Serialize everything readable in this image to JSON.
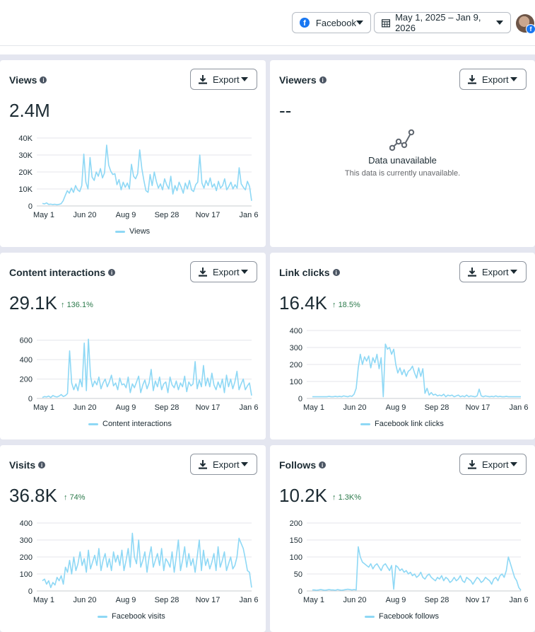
{
  "header": {
    "platform_label": "Facebook",
    "date_range": "May 1, 2025 – Jan 9, 2026",
    "avatar_badge": "f",
    "platform_icon": "f"
  },
  "common": {
    "export_label": "Export",
    "info_glyph": "i",
    "x_ticks": [
      "May 1",
      "Jun 20",
      "Aug 9",
      "Sep 28",
      "Nov 17",
      "Jan 6"
    ],
    "line_color": "#8ed8f5"
  },
  "cards": {
    "views": {
      "title": "Views",
      "value": "2.4M",
      "legend": "Views"
    },
    "viewers": {
      "title": "Viewers",
      "value": "--",
      "unavailable_title": "Data unavailable",
      "unavailable_text": "This data is currently unavailable."
    },
    "content_interactions": {
      "title": "Content interactions",
      "value": "29.1K",
      "delta": "136.1%",
      "legend": "Content interactions"
    },
    "link_clicks": {
      "title": "Link clicks",
      "value": "16.4K",
      "delta": "18.5%",
      "legend": "Facebook link clicks"
    },
    "visits": {
      "title": "Visits",
      "value": "36.8K",
      "delta": "74%",
      "legend": "Facebook visits"
    },
    "follows": {
      "title": "Follows",
      "value": "10.2K",
      "delta": "1.3K%",
      "legend": "Facebook follows"
    }
  },
  "chart_data": [
    {
      "type": "line",
      "id": "views",
      "title": "Views",
      "series_name": "Views",
      "y_tick_labels": [
        "0",
        "10K",
        "20K",
        "30K",
        "40K"
      ],
      "ylim": [
        0,
        40000
      ],
      "x_tick_labels": [
        "May 1",
        "Jun 20",
        "Aug 9",
        "Sep 28",
        "Nov 17",
        "Jan 6"
      ],
      "values": [
        1500,
        1200,
        1800,
        900,
        1100,
        800,
        1000,
        700,
        900,
        1300,
        3000,
        6000,
        9000,
        7500,
        10500,
        8000,
        12000,
        9500,
        8500,
        12000,
        30500,
        14000,
        10000,
        28500,
        17000,
        15000,
        20000,
        17500,
        22000,
        16500,
        19500,
        35800,
        24000,
        20500,
        18500,
        19000,
        12500,
        15500,
        9500,
        14000,
        11000,
        13500,
        10000,
        24500,
        17500,
        16000,
        19000,
        33000,
        22000,
        15000,
        9000,
        8000,
        18500,
        12000,
        20000,
        14500,
        10500,
        13000,
        9500,
        16000,
        12500,
        10000,
        17500,
        7000,
        12000,
        9000,
        14000,
        11000,
        7500,
        13500,
        10000,
        15000,
        9500,
        8500,
        12500,
        14000,
        30000,
        13500,
        10500,
        15000,
        12000,
        16500,
        11000,
        13000,
        9000,
        14500,
        10500,
        12000,
        16000,
        9500,
        11500,
        14000,
        10000,
        12500,
        10500,
        22500,
        13000,
        11000,
        9500,
        14500,
        11500,
        3000
      ]
    },
    {
      "type": "line",
      "id": "content_interactions",
      "title": "Content interactions",
      "series_name": "Content interactions",
      "y_tick_labels": [
        "0",
        "200",
        "400",
        "600"
      ],
      "ylim": [
        0,
        700
      ],
      "x_tick_labels": [
        "May 1",
        "Jun 20",
        "Aug 9",
        "Sep 28",
        "Nov 17",
        "Jan 6"
      ],
      "values": [
        10,
        20,
        15,
        25,
        10,
        30,
        20,
        15,
        25,
        40,
        20,
        30,
        50,
        490,
        160,
        90,
        150,
        80,
        200,
        120,
        570,
        80,
        610,
        230,
        120,
        180,
        140,
        220,
        100,
        160,
        200,
        120,
        170,
        240,
        130,
        160,
        90,
        210,
        140,
        150,
        110,
        220,
        60,
        150,
        110,
        170,
        230,
        60,
        140,
        190,
        100,
        160,
        300,
        80,
        180,
        120,
        220,
        90,
        150,
        170,
        60,
        220,
        140,
        110,
        180,
        90,
        160,
        120,
        230,
        70,
        170,
        130,
        150,
        380,
        100,
        190,
        120,
        340,
        130,
        210,
        120,
        260,
        140,
        90,
        170,
        110,
        200,
        60,
        240,
        120,
        200,
        100,
        170,
        280,
        90,
        150,
        200,
        90,
        130,
        160,
        30
      ]
    },
    {
      "type": "line",
      "id": "link_clicks",
      "title": "Link clicks",
      "series_name": "Facebook link clicks",
      "y_tick_labels": [
        "0",
        "100",
        "200",
        "300",
        "400"
      ],
      "ylim": [
        0,
        400
      ],
      "x_tick_labels": [
        "May 1",
        "Jun 20",
        "Aug 9",
        "Sep 28",
        "Nov 17",
        "Jan 6"
      ],
      "values": [
        10,
        10,
        10,
        10,
        10,
        10,
        10,
        10,
        12,
        10,
        10,
        12,
        10,
        12,
        10,
        15,
        12,
        10,
        15,
        12,
        25,
        60,
        180,
        260,
        200,
        245,
        220,
        250,
        180,
        240,
        210,
        260,
        175,
        240,
        10,
        320,
        290,
        300,
        260,
        290,
        200,
        150,
        180,
        140,
        170,
        130,
        160,
        170,
        190,
        150,
        120,
        180,
        130,
        175,
        30,
        60,
        20,
        35,
        20,
        25,
        15,
        20,
        15,
        25,
        10,
        20,
        15,
        20,
        10,
        15,
        20,
        10,
        15,
        10,
        20,
        10,
        15,
        12,
        10,
        15,
        55,
        15,
        10,
        15,
        12,
        10,
        12,
        10,
        15,
        10,
        12,
        10,
        10,
        12,
        10,
        10,
        10,
        10,
        10,
        10,
        10
      ]
    },
    {
      "type": "line",
      "id": "visits",
      "title": "Visits",
      "series_name": "Facebook visits",
      "y_tick_labels": [
        "0",
        "100",
        "200",
        "300",
        "400"
      ],
      "ylim": [
        0,
        400
      ],
      "x_tick_labels": [
        "May 1",
        "Jun 20",
        "Aug 9",
        "Sep 28",
        "Nov 17",
        "Jan 6"
      ],
      "values": [
        60,
        70,
        40,
        60,
        20,
        50,
        35,
        80,
        60,
        90,
        40,
        140,
        110,
        180,
        100,
        200,
        120,
        160,
        230,
        150,
        190,
        110,
        240,
        130,
        170,
        210,
        150,
        250,
        120,
        180,
        220,
        140,
        190,
        120,
        230,
        170,
        210,
        150,
        240,
        120,
        180,
        250,
        140,
        340,
        200,
        160,
        300,
        140,
        180,
        230,
        110,
        200,
        260,
        140,
        180,
        220,
        150,
        250,
        120,
        190,
        170,
        140,
        230,
        110,
        200,
        300,
        120,
        180,
        260,
        140,
        220,
        150,
        190,
        110,
        200,
        300,
        120,
        240,
        150,
        190,
        130,
        170,
        220,
        120,
        260,
        140,
        180,
        230,
        120,
        160,
        200,
        130,
        150,
        200,
        310,
        280,
        250,
        190,
        120,
        110,
        20
      ]
    },
    {
      "type": "line",
      "id": "follows",
      "title": "Follows",
      "series_name": "Facebook follows",
      "y_tick_labels": [
        "0",
        "50",
        "100",
        "150",
        "200"
      ],
      "ylim": [
        0,
        200
      ],
      "x_tick_labels": [
        "May 1",
        "Jun 20",
        "Aug 9",
        "Sep 28",
        "Nov 17",
        "Jan 6"
      ],
      "values": [
        3,
        3,
        2,
        3,
        4,
        3,
        2,
        3,
        4,
        3,
        3,
        2,
        4,
        3,
        2,
        3,
        4,
        5,
        4,
        3,
        4,
        3,
        130,
        100,
        85,
        80,
        75,
        70,
        80,
        65,
        75,
        80,
        70,
        60,
        75,
        80,
        70,
        60,
        75,
        5,
        75,
        70,
        60,
        65,
        55,
        60,
        50,
        55,
        45,
        50,
        40,
        45,
        55,
        40,
        35,
        45,
        50,
        40,
        35,
        30,
        40,
        35,
        45,
        30,
        40,
        35,
        25,
        30,
        40,
        30,
        35,
        45,
        30,
        25,
        40,
        35,
        30,
        20,
        30,
        40,
        35,
        25,
        30,
        40,
        35,
        30,
        20,
        35,
        40,
        30,
        45,
        50,
        40,
        60,
        100,
        80,
        60,
        40,
        30,
        10,
        2
      ]
    }
  ]
}
